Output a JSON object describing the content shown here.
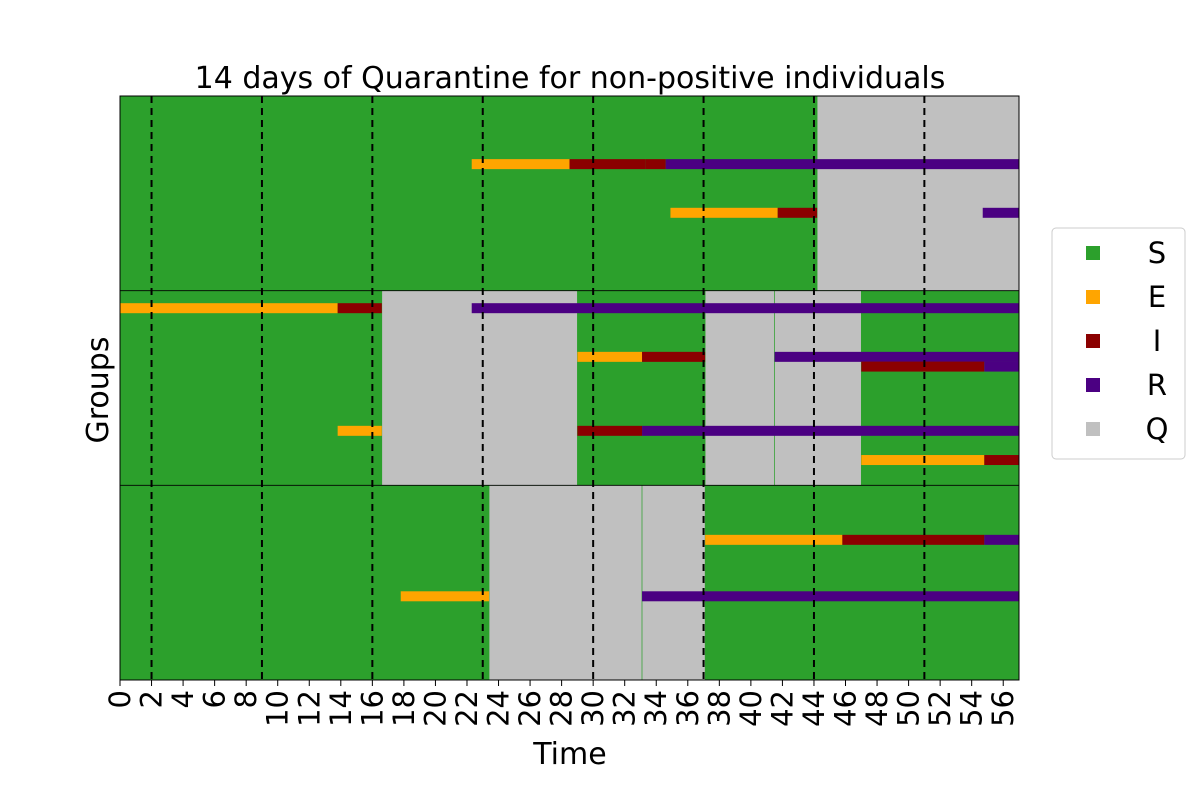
{
  "chart_data": {
    "type": "timeline",
    "title": "14 days of Quarantine for non-positive individuals",
    "xlabel": "Time",
    "ylabel": "Groups",
    "xlim": [
      0,
      57
    ],
    "xticks": [
      0,
      2,
      4,
      6,
      8,
      10,
      12,
      14,
      16,
      18,
      20,
      22,
      24,
      26,
      28,
      30,
      32,
      34,
      36,
      38,
      40,
      42,
      44,
      46,
      48,
      50,
      52,
      54,
      56
    ],
    "yticks_shown": false,
    "dashed_vlines": [
      2,
      9,
      16,
      23,
      30,
      37,
      44,
      51
    ],
    "legend": {
      "placement": "right",
      "entries": [
        {
          "label": "S",
          "color": "#2ca02c"
        },
        {
          "label": "E",
          "color": "#ffa500"
        },
        {
          "label": "I",
          "color": "#8b0000"
        },
        {
          "label": "R",
          "color": "#4b0082"
        },
        {
          "label": "Q",
          "color": "#c0c0c0"
        }
      ]
    },
    "colors": {
      "S": "#2ca02c",
      "E": "#ffa500",
      "I": "#8b0000",
      "R": "#4b0082",
      "Q": "#c0c0c0"
    },
    "groups": [
      {
        "q_periods": [
          [
            44.2,
            57
          ]
        ],
        "individuals": [
          {
            "row": 3,
            "segments": [
              [
                22.3,
                28.5,
                "E"
              ],
              [
                28.5,
                33.3,
                "I"
              ],
              [
                33.3,
                34.6,
                "I"
              ],
              [
                34.6,
                57,
                "R"
              ]
            ]
          },
          {
            "row": 5.5,
            "segments": [
              [
                34.9,
                41.7,
                "E"
              ],
              [
                41.7,
                44.2,
                "I"
              ],
              [
                54.7,
                57,
                "R"
              ]
            ]
          }
        ]
      },
      {
        "q_periods": [
          [
            16.6,
            29
          ],
          [
            37.1,
            41.5
          ],
          [
            41.5,
            47
          ]
        ],
        "individuals": [
          {
            "row": 0.4,
            "segments": [
              [
                0,
                13.8,
                "E"
              ],
              [
                13.8,
                16.6,
                "I"
              ],
              [
                22.3,
                57,
                "R"
              ]
            ]
          },
          {
            "row": 2.9,
            "segments": [
              [
                29,
                33.1,
                "E"
              ],
              [
                33.1,
                37.1,
                "I"
              ],
              [
                41.5,
                57,
                "R"
              ]
            ]
          },
          {
            "row": 3.4,
            "segments": [
              [
                47,
                54.8,
                "I"
              ],
              [
                54.8,
                57,
                "R"
              ]
            ]
          },
          {
            "row": 6.7,
            "segments": [
              [
                13.8,
                16.6,
                "E"
              ],
              [
                29,
                33.1,
                "I"
              ],
              [
                33.1,
                57,
                "R"
              ]
            ]
          },
          {
            "row": 8.2,
            "segments": [
              [
                47,
                54.8,
                "E"
              ],
              [
                54.8,
                57,
                "I"
              ]
            ]
          }
        ]
      },
      {
        "q_periods": [
          [
            23.4,
            33.1
          ],
          [
            33.1,
            37.1
          ]
        ],
        "individuals": [
          {
            "row": 2.3,
            "segments": [
              [
                37.1,
                45.8,
                "E"
              ],
              [
                45.8,
                54.8,
                "I"
              ],
              [
                54.8,
                57,
                "R"
              ]
            ]
          },
          {
            "row": 5.2,
            "segments": [
              [
                17.8,
                23.4,
                "E"
              ],
              [
                33.1,
                57,
                "R"
              ]
            ]
          }
        ]
      }
    ]
  }
}
